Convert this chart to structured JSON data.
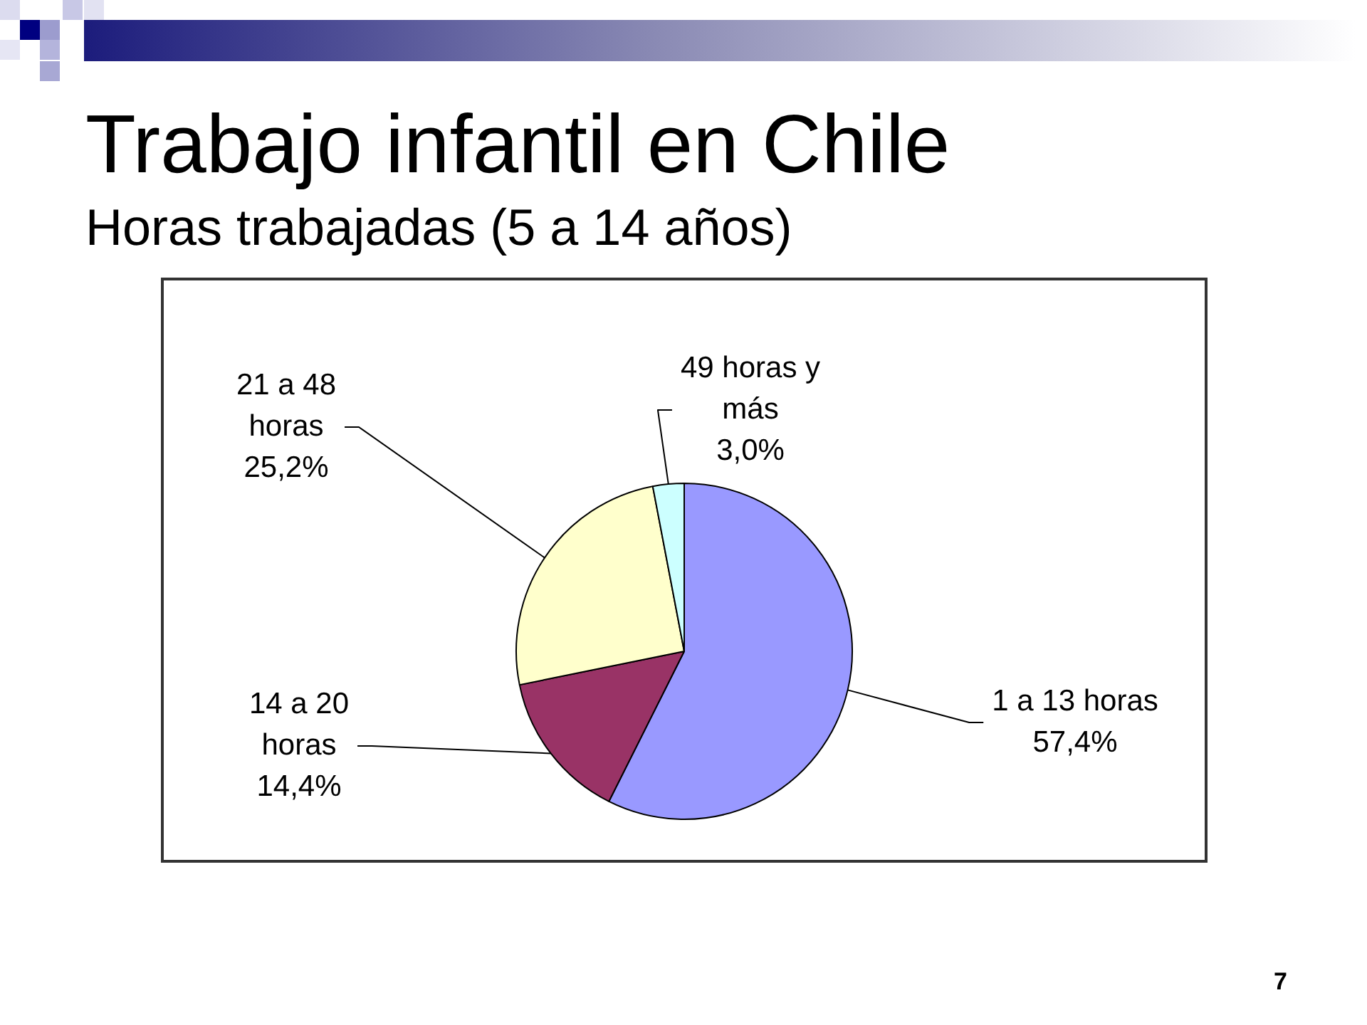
{
  "chart_data": {
    "type": "pie",
    "title": "Trabajo infantil en Chile",
    "subtitle": "Horas trabajadas (5 a 14 años)",
    "categories": [
      "1 a 13 horas",
      "14 a 20 horas",
      "21 a 48 horas",
      "49 horas y más"
    ],
    "values": [
      57.4,
      14.4,
      25.2,
      3.0
    ],
    "value_labels": [
      "57,4%",
      "14,4%",
      "25,2%",
      "3,0%"
    ],
    "colors": [
      "#9999ff",
      "#993366",
      "#ffffcc",
      "#ccffff"
    ],
    "annotations": [
      "7"
    ]
  }
}
